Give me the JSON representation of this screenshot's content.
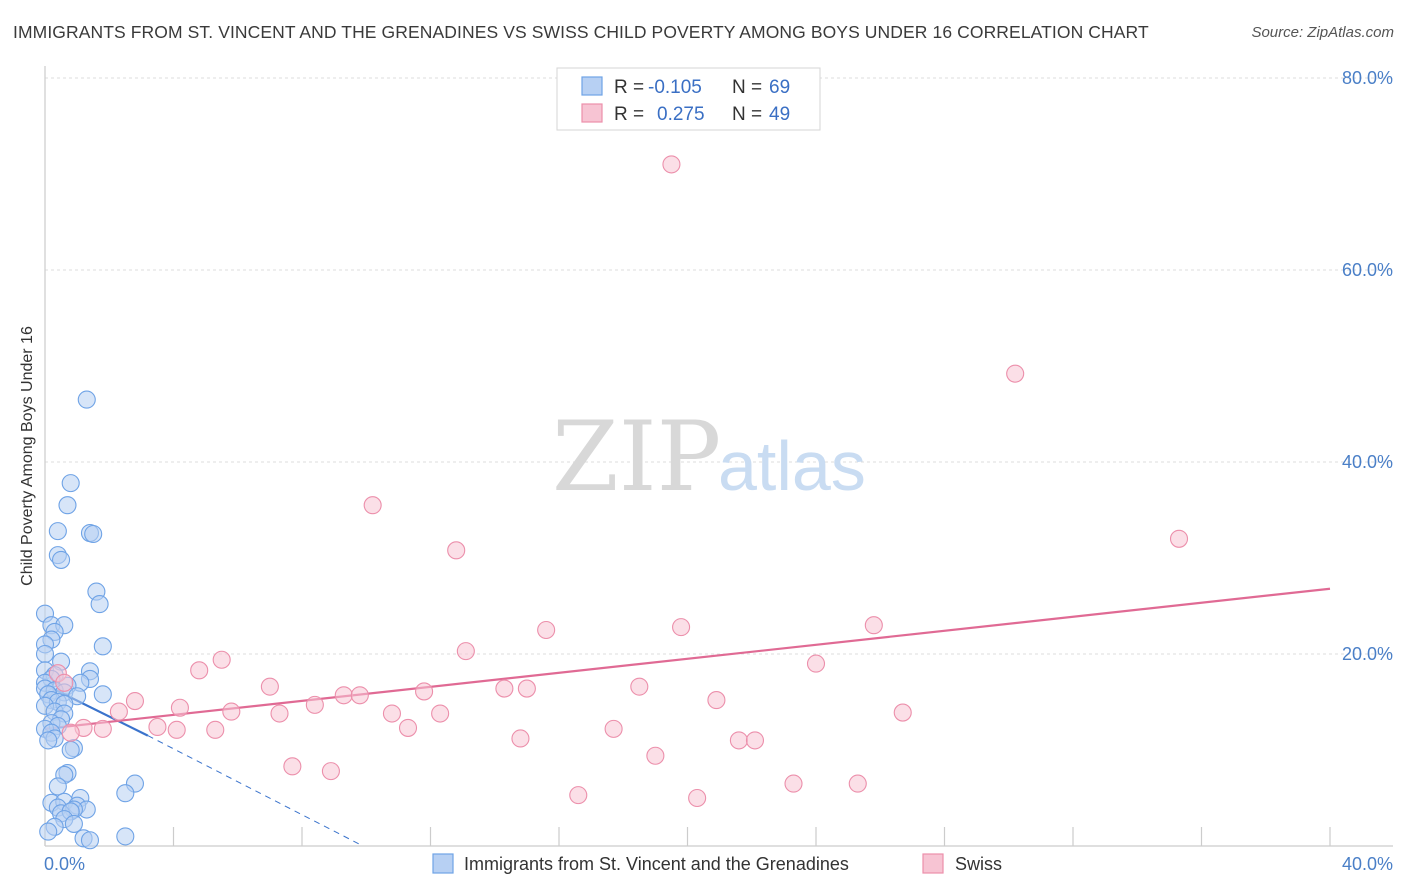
{
  "chart_data": {
    "type": "scatter",
    "title": "IMMIGRANTS FROM ST. VINCENT AND THE GRENADINES VS SWISS CHILD POVERTY AMONG BOYS UNDER 16 CORRELATION CHART",
    "source": "Source: ZipAtlas.com",
    "xlabel": "",
    "ylabel": "Child Poverty Among Boys Under 16",
    "xlim": [
      0,
      40
    ],
    "ylim": [
      0,
      80
    ],
    "x_tick_labels": [
      "0.0%",
      "40.0%"
    ],
    "y_ticks": [
      20,
      40,
      60,
      80
    ],
    "y_tick_labels": [
      "20.0%",
      "40.0%",
      "60.0%",
      "80.0%"
    ],
    "grid": true,
    "legend": {
      "placement": "top-center",
      "entries": [
        {
          "r_label": "R =",
          "r_value": "-0.105",
          "n_label": "N =",
          "n_value": "69"
        },
        {
          "r_label": "R =",
          "r_value": "0.275",
          "n_label": "N =",
          "n_value": "49"
        }
      ]
    },
    "bottom_legend": [
      "Immigrants from St. Vincent and the Grenadines",
      "Swiss"
    ],
    "watermark": {
      "zip": "ZIP",
      "atlas": "atlas"
    },
    "series": [
      {
        "name": "Immigrants from St. Vincent and the Grenadines",
        "color": "#6fa3e6",
        "fill": "#b7d0f3",
        "trend": {
          "x0": 0.0,
          "y0": 16.8,
          "x1": 3.2,
          "y1": 11.5,
          "dash_x1": 9.9,
          "dash_y1": 0.0,
          "color": "#3a73cc"
        },
        "points": [
          [
            1.3,
            46.5
          ],
          [
            0.8,
            37.8
          ],
          [
            0.7,
            35.5
          ],
          [
            0.4,
            32.8
          ],
          [
            1.4,
            32.6
          ],
          [
            1.5,
            32.5
          ],
          [
            0.4,
            30.3
          ],
          [
            0.5,
            29.8
          ],
          [
            1.6,
            26.5
          ],
          [
            1.7,
            25.2
          ],
          [
            0.0,
            24.2
          ],
          [
            0.2,
            23.0
          ],
          [
            0.6,
            23.0
          ],
          [
            0.3,
            22.3
          ],
          [
            0.2,
            21.5
          ],
          [
            0.0,
            21.0
          ],
          [
            1.8,
            20.8
          ],
          [
            0.0,
            20.0
          ],
          [
            0.5,
            19.2
          ],
          [
            0.0,
            18.3
          ],
          [
            1.4,
            18.2
          ],
          [
            0.3,
            17.8
          ],
          [
            0.2,
            17.4
          ],
          [
            1.4,
            17.4
          ],
          [
            0.0,
            17.0
          ],
          [
            1.1,
            17.0
          ],
          [
            0.7,
            16.7
          ],
          [
            0.0,
            16.4
          ],
          [
            0.3,
            16.2
          ],
          [
            0.6,
            16.0
          ],
          [
            0.1,
            15.8
          ],
          [
            1.0,
            15.6
          ],
          [
            1.8,
            15.8
          ],
          [
            0.2,
            15.2
          ],
          [
            0.4,
            15.0
          ],
          [
            0.6,
            14.8
          ],
          [
            0.0,
            14.6
          ],
          [
            0.3,
            14.0
          ],
          [
            0.6,
            13.8
          ],
          [
            0.5,
            13.2
          ],
          [
            0.2,
            12.8
          ],
          [
            0.4,
            12.5
          ],
          [
            0.0,
            12.2
          ],
          [
            0.2,
            11.8
          ],
          [
            0.3,
            11.2
          ],
          [
            0.1,
            11.0
          ],
          [
            0.9,
            10.2
          ],
          [
            0.8,
            10.0
          ],
          [
            0.7,
            7.6
          ],
          [
            0.6,
            7.4
          ],
          [
            0.4,
            6.2
          ],
          [
            2.8,
            6.5
          ],
          [
            2.5,
            5.5
          ],
          [
            0.2,
            4.5
          ],
          [
            0.6,
            4.6
          ],
          [
            0.4,
            4.0
          ],
          [
            1.1,
            5.0
          ],
          [
            1.0,
            4.2
          ],
          [
            1.3,
            3.8
          ],
          [
            0.9,
            3.8
          ],
          [
            0.5,
            3.4
          ],
          [
            0.8,
            3.6
          ],
          [
            0.6,
            2.8
          ],
          [
            0.9,
            2.3
          ],
          [
            1.2,
            0.8
          ],
          [
            1.4,
            0.6
          ],
          [
            2.5,
            1.0
          ],
          [
            0.3,
            2.0
          ],
          [
            0.1,
            1.5
          ]
        ]
      },
      {
        "name": "Swiss",
        "color": "#ec8fab",
        "fill": "#f7c4d3",
        "trend": {
          "x0": 0.0,
          "y0": 12.2,
          "x1": 40.0,
          "y1": 26.8,
          "color": "#e06a94"
        },
        "points": [
          [
            19.5,
            71.0
          ],
          [
            30.2,
            49.2
          ],
          [
            10.2,
            35.5
          ],
          [
            35.3,
            32.0
          ],
          [
            12.8,
            30.8
          ],
          [
            15.6,
            22.5
          ],
          [
            19.8,
            22.8
          ],
          [
            25.8,
            23.0
          ],
          [
            13.1,
            20.3
          ],
          [
            5.5,
            19.4
          ],
          [
            24.0,
            19.0
          ],
          [
            4.8,
            18.3
          ],
          [
            0.4,
            18.0
          ],
          [
            0.6,
            17.0
          ],
          [
            7.0,
            16.6
          ],
          [
            14.3,
            16.4
          ],
          [
            15.0,
            16.4
          ],
          [
            18.5,
            16.6
          ],
          [
            11.8,
            16.1
          ],
          [
            9.3,
            15.7
          ],
          [
            9.8,
            15.7
          ],
          [
            2.8,
            15.1
          ],
          [
            20.9,
            15.2
          ],
          [
            4.2,
            14.4
          ],
          [
            8.4,
            14.7
          ],
          [
            5.8,
            14.0
          ],
          [
            7.3,
            13.8
          ],
          [
            10.8,
            13.8
          ],
          [
            12.3,
            13.8
          ],
          [
            26.7,
            13.9
          ],
          [
            2.3,
            14.0
          ],
          [
            1.2,
            12.3
          ],
          [
            1.8,
            12.2
          ],
          [
            3.5,
            12.4
          ],
          [
            4.1,
            12.1
          ],
          [
            5.3,
            12.1
          ],
          [
            11.3,
            12.3
          ],
          [
            17.7,
            12.2
          ],
          [
            14.8,
            11.2
          ],
          [
            21.6,
            11.0
          ],
          [
            22.1,
            11.0
          ],
          [
            19.0,
            9.4
          ],
          [
            7.7,
            8.3
          ],
          [
            8.9,
            7.8
          ],
          [
            23.3,
            6.5
          ],
          [
            25.3,
            6.5
          ],
          [
            16.6,
            5.3
          ],
          [
            20.3,
            5.0
          ],
          [
            0.8,
            11.8
          ]
        ]
      }
    ]
  }
}
